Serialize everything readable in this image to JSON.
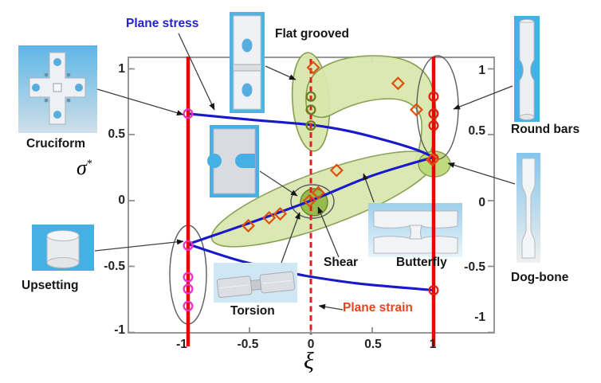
{
  "figure": {
    "annotations": {
      "plane_stress": "Plane stress",
      "flat_grooved": "Flat grooved",
      "cruciform": "Cruciform",
      "upsetting": "Upsetting",
      "torsion": "Torsion",
      "shear": "Shear",
      "butterfly": "Butterfly",
      "round_bars": "Round bars",
      "dog_bone": "Dog-bone",
      "plane_strain": "Plane strain"
    },
    "axes": {
      "x_label": "ξ",
      "y_label_base": "σ",
      "y_label_sup": "*",
      "x_ticks": [
        "-1",
        "-0.5",
        "0",
        "0.5",
        "1"
      ],
      "y_ticks_left": [
        "1",
        "0.5",
        "0",
        "-0.5",
        "-1"
      ],
      "y_ticks_right": [
        "1",
        "0.5",
        "0",
        "-0.5",
        "-1"
      ]
    },
    "colors": {
      "plane_stress_curve": "#1818cc",
      "vertical_limit_lines": "#ee0000",
      "plane_strain_line": "#e02020",
      "magenta_markers": "#e832cc",
      "red_markers": "#dd2211",
      "olive_markers": "#6b7d1f",
      "diamond_markers": "#e05010",
      "region_fill": "#d9e7ad",
      "region_stroke": "#7f9c48"
    }
  },
  "chart_data": {
    "type": "scatter",
    "title": "",
    "xlabel": "ξ",
    "ylabel": "σ*",
    "xlim": [
      -1.5,
      1.5
    ],
    "ylim": [
      -1,
      1.1
    ],
    "grid": false,
    "plane_stress_curve": {
      "color": "#1818cc",
      "branches": [
        {
          "name": "equibiaxial-tension-to-uniaxial-tension",
          "points": [
            [
              -1,
              0.66
            ],
            [
              -0.5,
              0.615
            ],
            [
              0,
              0.575
            ],
            [
              0.3,
              0.53
            ],
            [
              0.6,
              0.46
            ],
            [
              0.85,
              0.39
            ],
            [
              1,
              0.33
            ]
          ]
        },
        {
          "name": "uniaxial-compression-to-uniaxial-tension",
          "points": [
            [
              -1,
              -0.33
            ],
            [
              -0.5,
              -0.17
            ],
            [
              0,
              0
            ],
            [
              0.5,
              0.19
            ],
            [
              1,
              0.33
            ]
          ]
        },
        {
          "name": "uniaxial-compression-to-equibiaxial-compression",
          "points": [
            [
              -1,
              -0.33
            ],
            [
              -0.6,
              -0.45
            ],
            [
              -0.2,
              -0.54
            ],
            [
              0,
              -0.577
            ],
            [
              0.4,
              -0.63
            ],
            [
              1,
              -0.68
            ]
          ]
        }
      ]
    },
    "vertical_lines": [
      {
        "x": -1,
        "style": "solid",
        "color": "#ee0000"
      },
      {
        "x": 1,
        "style": "solid",
        "color": "#ee0000"
      },
      {
        "x": 0,
        "style": "dashed",
        "color": "#e02020",
        "label": "Plane strain"
      }
    ],
    "series": [
      {
        "name": "cruciform-equibiaxial-tension",
        "marker": "circle",
        "color": "#e832cc",
        "points": [
          [
            -1,
            0.66
          ]
        ]
      },
      {
        "name": "upsetting",
        "marker": "circle",
        "color": "#e832cc",
        "points": [
          [
            -1,
            -0.34
          ],
          [
            -1,
            -0.58
          ],
          [
            -1,
            -0.67
          ],
          [
            -1,
            -0.8
          ]
        ]
      },
      {
        "name": "flat-grooved",
        "marker": "circle",
        "color": "#6b7d1f",
        "points": [
          [
            0,
            0.79
          ],
          [
            0,
            0.69
          ],
          [
            0,
            0.57
          ]
        ]
      },
      {
        "name": "round-bars-notched",
        "marker": "circle",
        "color": "#dd2211",
        "points": [
          [
            1,
            0.79
          ],
          [
            1,
            0.66
          ],
          [
            1,
            0.57
          ]
        ]
      },
      {
        "name": "dog-bone-uniaxial-tension",
        "marker": "circle",
        "color": "#dd2211",
        "points": [
          [
            1,
            0.32
          ]
        ]
      },
      {
        "name": "equibiaxial-compression",
        "marker": "circle",
        "color": "#dd2211",
        "points": [
          [
            1,
            -0.68
          ]
        ]
      },
      {
        "name": "mixed-state-diamonds",
        "marker": "diamond",
        "color": "#e05010",
        "points": [
          [
            0.02,
            1.01
          ],
          [
            0.71,
            0.89
          ],
          [
            0.86,
            0.69
          ],
          [
            0.99,
            0.31
          ],
          [
            -0.51,
            -0.19
          ],
          [
            -0.34,
            -0.13
          ],
          [
            -0.25,
            -0.1
          ],
          [
            -0.01,
            0.0
          ],
          [
            0.06,
            0.06
          ],
          [
            0.21,
            0.23
          ]
        ]
      }
    ],
    "highlight_regions": [
      "flat-grooved ellipse at xi=0 upper",
      "upper hook band from xi=0 to xi=1",
      "diagonal band through shear origin",
      "dark shear spot at (0,0)",
      "butterfly/dog-bone spot at (1,0.33)",
      "upsetting outline at xi=-1 lower",
      "round-bars outline at xi=1 upper"
    ]
  }
}
